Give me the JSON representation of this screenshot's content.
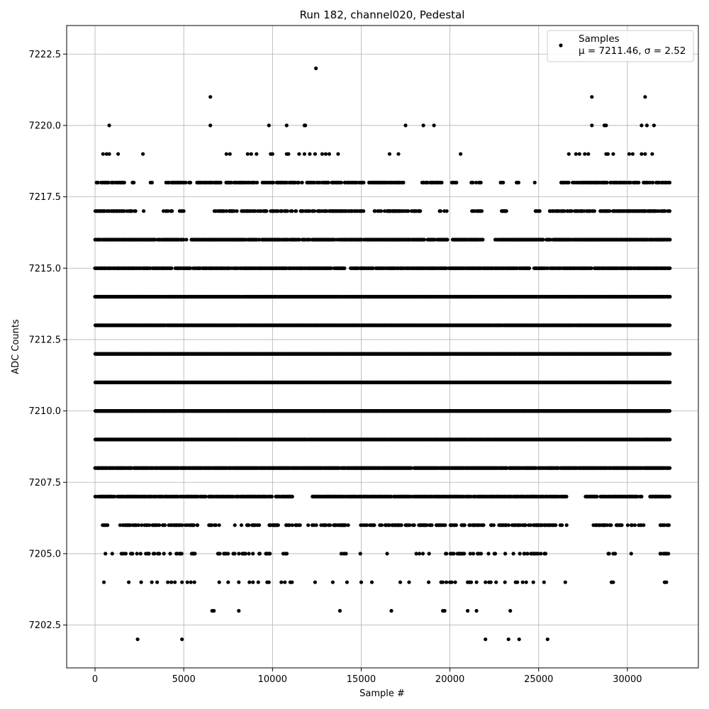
{
  "chart_data": {
    "type": "scatter",
    "title": "Run 182, channel020, Pedestal",
    "xlabel": "Sample #",
    "ylabel": "ADC Counts",
    "xlim": [
      -1600,
      34000
    ],
    "ylim": [
      7201.0,
      7223.5
    ],
    "xticks": [
      0,
      5000,
      10000,
      15000,
      20000,
      25000,
      30000
    ],
    "yticks": [
      7202.5,
      7205.0,
      7207.5,
      7210.0,
      7212.5,
      7215.0,
      7217.5,
      7220.0,
      7222.5
    ],
    "xtick_labels": [
      "0",
      "5000",
      "10000",
      "15000",
      "20000",
      "25000",
      "30000"
    ],
    "ytick_labels": [
      "7202.5",
      "7205.0",
      "7207.5",
      "7210.0",
      "7212.5",
      "7215.0",
      "7217.5",
      "7220.0",
      "7222.5"
    ],
    "grid": true,
    "legend": {
      "placement": "top-right",
      "label_line1": "Samples",
      "label_line2": "μ = 7211.46, σ = 2.52"
    },
    "series": [
      {
        "name": "Samples",
        "color": "#000000",
        "marker": "circle",
        "n_samples": 32400,
        "mean": 7211.46,
        "sigma": 2.52,
        "level_fill": [
          {
            "y": 7222,
            "x": [
              12450
            ]
          },
          {
            "y": 7221,
            "x": [
              6500,
              28000,
              31000
            ]
          },
          {
            "y": 7220,
            "x": [
              800,
              6500,
              9800,
              10800,
              11800,
              11850,
              17500,
              18500,
              19100,
              28000,
              28700,
              28800,
              30800,
              31100,
              31500
            ]
          },
          {
            "y": 7219,
            "x": [
              450,
              650,
              800,
              1300,
              2700,
              7400,
              7600,
              8600,
              8800,
              9100,
              9900,
              10000,
              10800,
              10900,
              11500,
              11800,
              12100,
              12400,
              12800,
              13000,
              13200,
              13700,
              16600,
              17100,
              20600,
              26700,
              27100,
              27300,
              27600,
              27800,
              28800,
              28900,
              29200,
              30100,
              30300,
              30800,
              31000,
              31400
            ]
          },
          {
            "y": 7218,
            "density": 0.55,
            "gaps": [
              [
                1700,
                2000
              ],
              [
                2200,
                3100
              ],
              [
                3200,
                3900
              ],
              [
                5400,
                5700
              ],
              [
                15200,
                15400
              ],
              [
                17400,
                18400
              ],
              [
                19600,
                20100
              ],
              [
                20500,
                21200
              ],
              [
                21800,
                22800
              ],
              [
                23000,
                23700
              ],
              [
                23900,
                24700
              ],
              [
                24800,
                26200
              ]
            ]
          },
          {
            "y": 7217,
            "density": 0.55,
            "gaps": [
              [
                2300,
                2600
              ],
              [
                2800,
                3800
              ],
              [
                4400,
                4700
              ],
              [
                5000,
                6700
              ],
              [
                15300,
                15700
              ],
              [
                18400,
                19400
              ],
              [
                19800,
                21200
              ],
              [
                21800,
                22900
              ],
              [
                23200,
                24800
              ],
              [
                25200,
                25600
              ]
            ]
          },
          {
            "y": 7216,
            "density": 0.8,
            "gaps": [
              [
                5200,
                5400
              ],
              [
                19900,
                20100
              ],
              [
                21900,
                22500
              ]
            ]
          },
          {
            "y": 7215,
            "density": 0.85,
            "gaps": [
              [
                4300,
                4500
              ],
              [
                14100,
                14400
              ],
              [
                24500,
                24700
              ]
            ]
          },
          {
            "y": 7214,
            "density": 0.97
          },
          {
            "y": 7213,
            "density": 0.99
          },
          {
            "y": 7212,
            "density": 1.0
          },
          {
            "y": 7211,
            "density": 1.0
          },
          {
            "y": 7210,
            "density": 1.0
          },
          {
            "y": 7209,
            "density": 0.98
          },
          {
            "y": 7208,
            "density": 0.92
          },
          {
            "y": 7207,
            "density": 0.78,
            "gaps": [
              [
                11100,
                12200
              ],
              [
                26600,
                27600
              ],
              [
                28300,
                28400
              ],
              [
                30800,
                31200
              ]
            ]
          },
          {
            "y": 7206,
            "density": 0.45,
            "gaps": [
              [
                100,
                400
              ],
              [
                700,
                1400
              ],
              [
                5900,
                6400
              ],
              [
                7000,
                7800
              ],
              [
                9300,
                9700
              ],
              [
                10300,
                10700
              ],
              [
                11600,
                12000
              ],
              [
                12500,
                12700
              ],
              [
                14300,
                14900
              ],
              [
                26600,
                27900
              ],
              [
                29700,
                30000
              ],
              [
                30900,
                31800
              ]
            ]
          },
          {
            "y": 7205,
            "density": 0.22,
            "gaps": [
              [
                5800,
                6800
              ],
              [
                10000,
                10500
              ],
              [
                10900,
                13800
              ],
              [
                14200,
                14900
              ],
              [
                15600,
                16400
              ],
              [
                16600,
                18000
              ],
              [
                19100,
                19500
              ],
              [
                25600,
                28900
              ],
              [
                29400,
                29900
              ],
              [
                30400,
                31800
              ]
            ]
          },
          {
            "y": 7204,
            "x": [
              500,
              1900,
              2600,
              3200,
              3500,
              4100,
              4300,
              4500,
              4900,
              5200,
              5400,
              5600,
              7000,
              7500,
              8100,
              8700,
              8900,
              9200,
              9700,
              9800,
              10500,
              10700,
              11000,
              11100,
              12400,
              13400,
              14200,
              15000,
              15600,
              17200,
              17700,
              18800,
              19500,
              19600,
              19800,
              20000,
              20100,
              20300,
              21000,
              21100,
              21200,
              21500,
              22000,
              22200,
              22300,
              22600,
              23100,
              23700,
              23800,
              24100,
              24300,
              24700,
              25300,
              26500,
              29100,
              29200,
              32100,
              32200
            ]
          },
          {
            "y": 7203,
            "x": [
              6600,
              6700,
              8100,
              13800,
              16700,
              19600,
              19700,
              21000,
              21500,
              23400
            ]
          },
          {
            "y": 7202,
            "x": [
              2400,
              4900,
              22000,
              23300,
              23900,
              25500
            ]
          }
        ]
      }
    ]
  }
}
